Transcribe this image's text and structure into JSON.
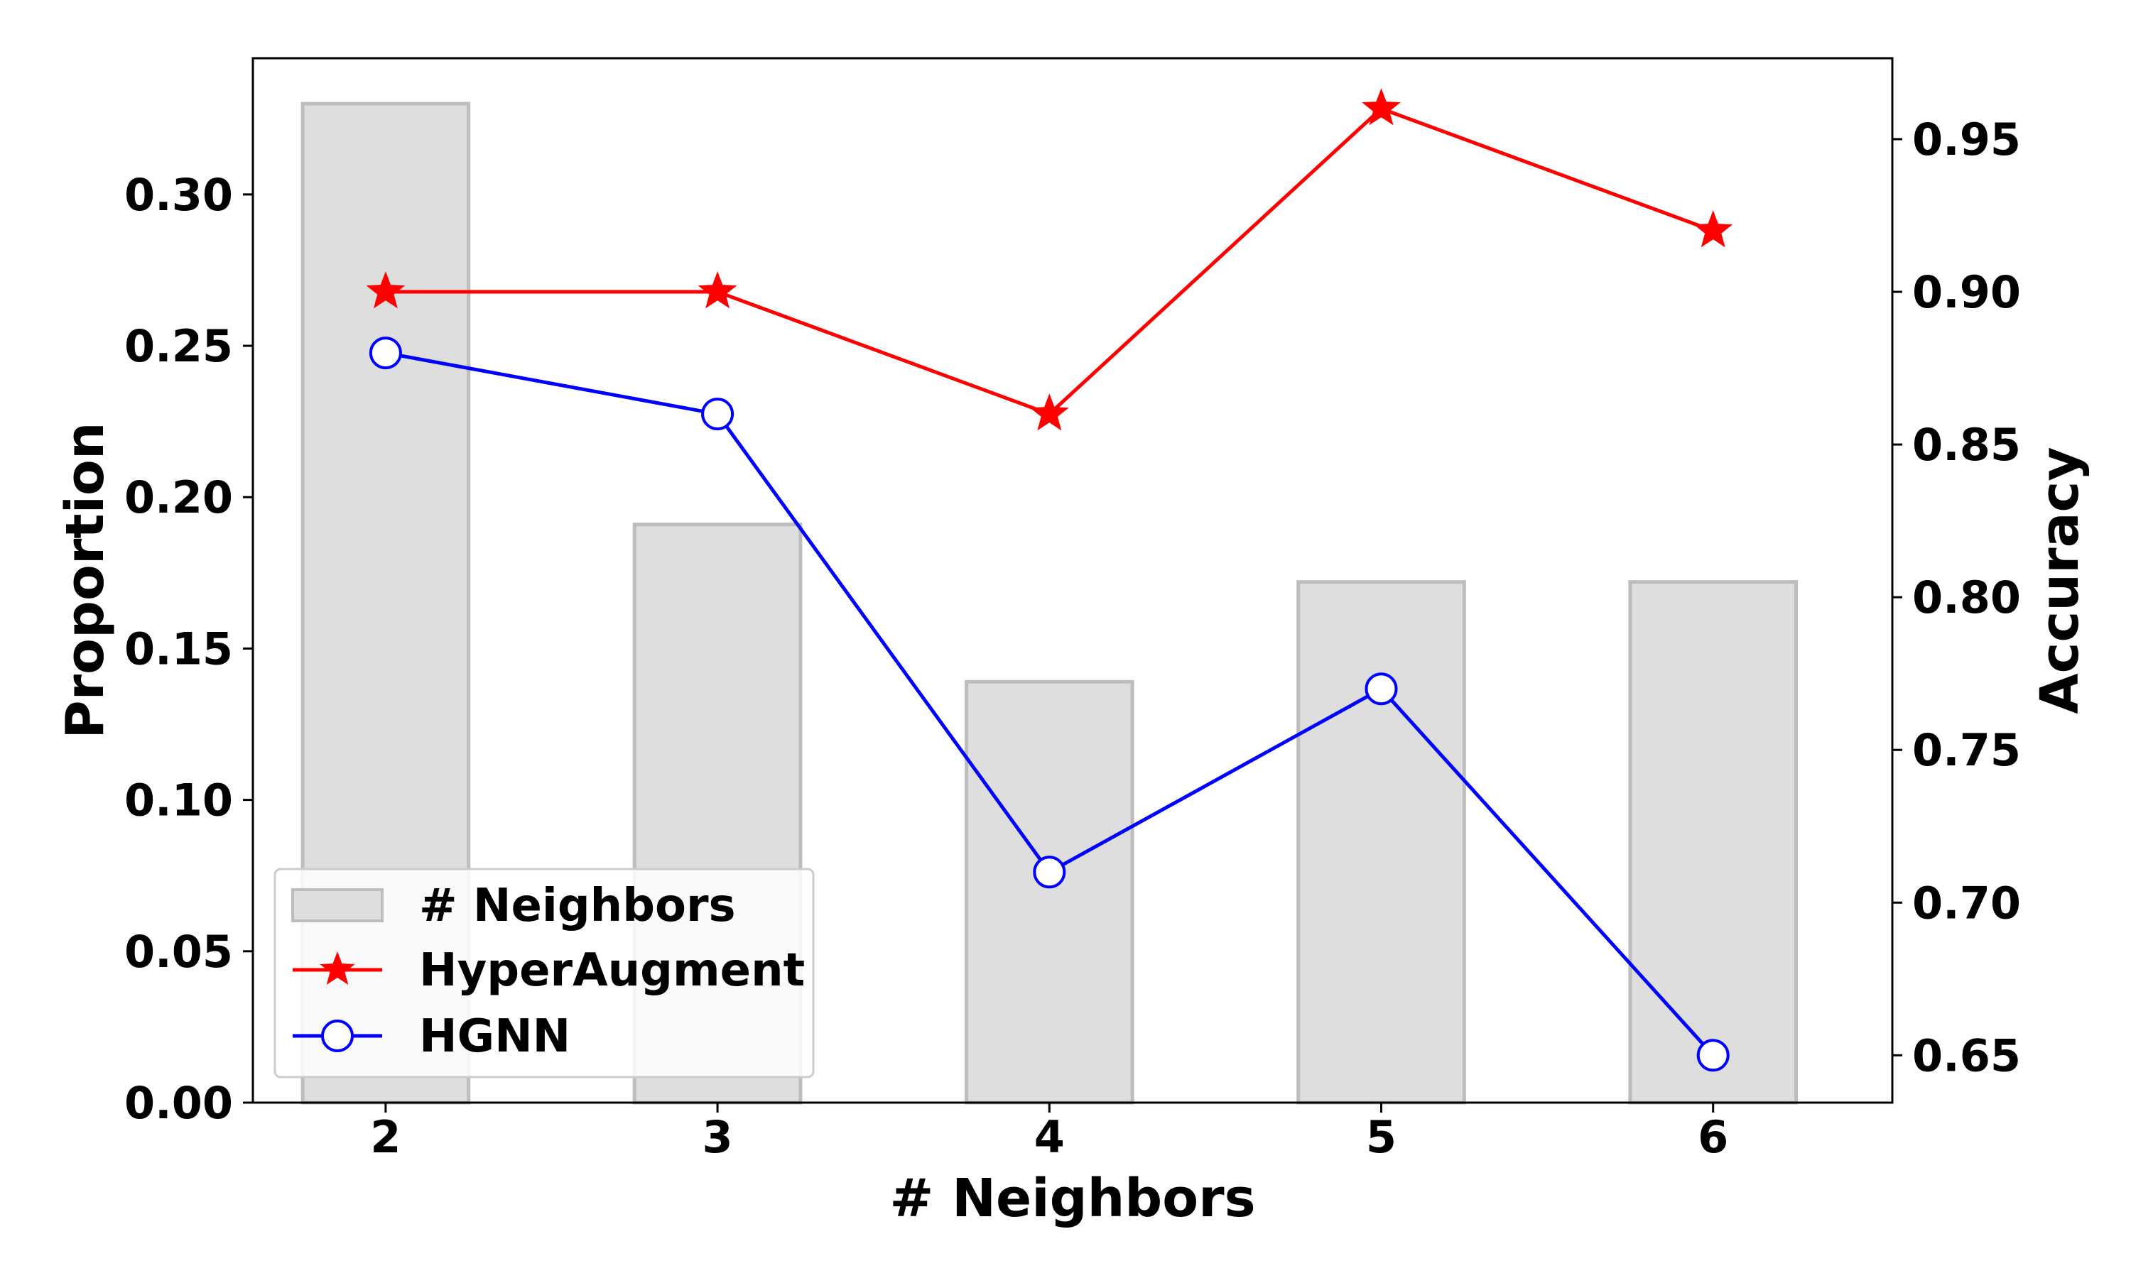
{
  "chart_data": {
    "type": "bar",
    "xlabel": "# Neighbors",
    "ylabel": "Proportion",
    "y2label": "Accuracy",
    "categories": [
      "2",
      "3",
      "4",
      "5",
      "6"
    ],
    "ylim": [
      0,
      0.345
    ],
    "y2lim": [
      0.6345,
      0.9765
    ],
    "yticks": [
      "0.00",
      "0.05",
      "0.10",
      "0.15",
      "0.20",
      "0.25",
      "0.30"
    ],
    "y2ticks": [
      "0.65",
      "0.70",
      "0.75",
      "0.80",
      "0.85",
      "0.90",
      "0.95"
    ],
    "legend_position": "lower-left",
    "grid": false,
    "series": [
      {
        "name": "# Neighbors",
        "kind": "bar",
        "axis": "left",
        "color": "#dedede",
        "edge_color": "#bdbdbd",
        "values": [
          0.33,
          0.191,
          0.139,
          0.172,
          0.172
        ]
      },
      {
        "name": "HyperAugment",
        "kind": "line",
        "axis": "right",
        "marker": "star",
        "color": "#ff0000",
        "values": [
          0.9,
          0.9,
          0.86,
          0.96,
          0.92
        ]
      },
      {
        "name": "HGNN",
        "kind": "line",
        "axis": "right",
        "marker": "circle",
        "color": "#0000ff",
        "values": [
          0.88,
          0.86,
          0.71,
          0.77,
          0.65
        ]
      }
    ]
  }
}
